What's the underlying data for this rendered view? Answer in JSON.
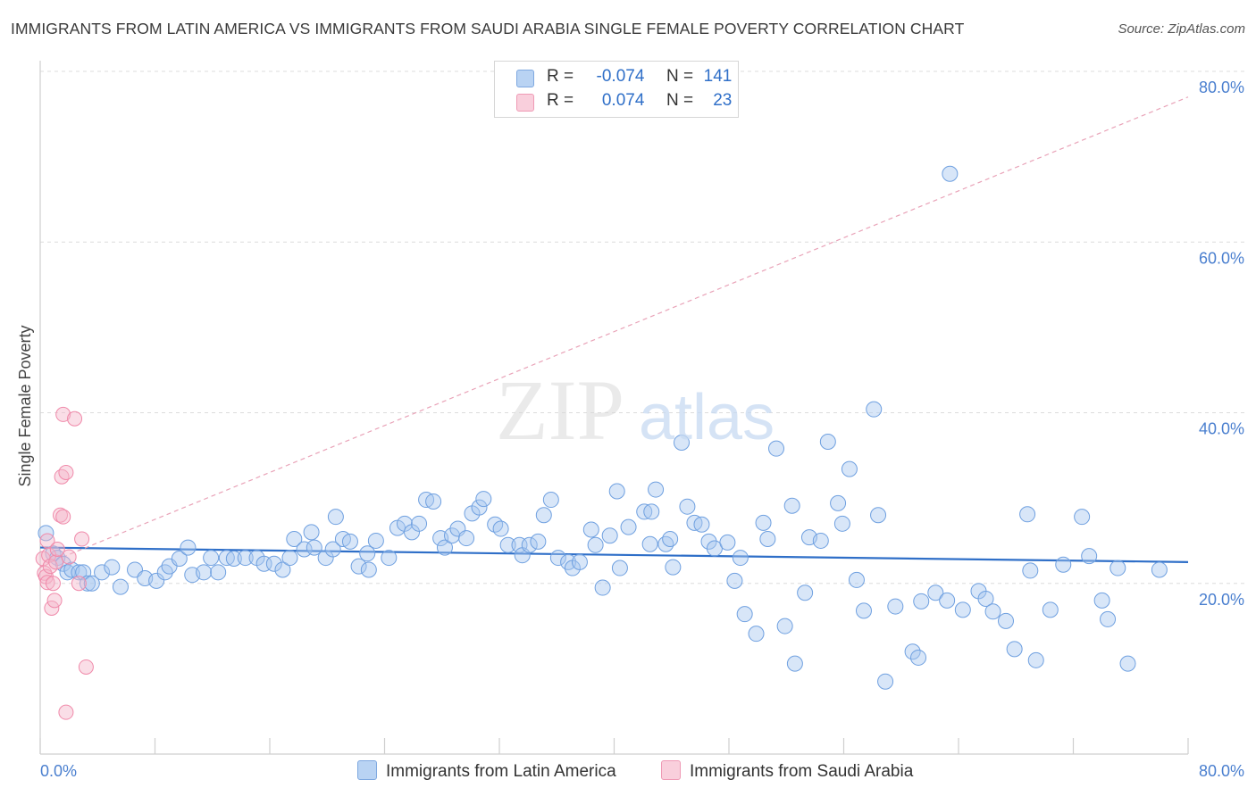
{
  "title": "IMMIGRANTS FROM LATIN AMERICA VS IMMIGRANTS FROM SAUDI ARABIA SINGLE FEMALE POVERTY CORRELATION CHART",
  "source": "Source: ZipAtlas.com",
  "watermark": "ZIPatlas",
  "legend": {
    "rows": [
      {
        "r_label": "R =",
        "r_value": "-0.074",
        "n_label": "N =",
        "n_value": "141",
        "color": "#a9c8f0"
      },
      {
        "r_label": "R =",
        "r_value": "0.074",
        "n_label": "N =",
        "n_value": "23",
        "color": "#f5b6c9"
      }
    ]
  },
  "bottom_legend": [
    {
      "label": "Immigrants from Latin America",
      "color": "#a9c8f0"
    },
    {
      "label": "Immigrants from Saudi Arabia",
      "color": "#f5b6c9"
    }
  ],
  "chart_data": {
    "type": "scatter",
    "title": "IMMIGRANTS FROM LATIN AMERICA VS IMMIGRANTS FROM SAUDI ARABIA SINGLE FEMALE POVERTY CORRELATION CHART",
    "xlabel": "",
    "ylabel": "Single Female Poverty",
    "xlim": [
      0,
      80
    ],
    "ylim": [
      0,
      80
    ],
    "x_tick_labels": [
      "0.0%",
      "80.0%"
    ],
    "y_tick_labels": [
      "20.0%",
      "40.0%",
      "60.0%",
      "80.0%"
    ],
    "y_ticks": [
      20,
      40,
      60,
      80
    ],
    "grid": true,
    "legend_position": "top-center",
    "series": [
      {
        "name": "Immigrants from Latin America",
        "color": "#6fa0e0",
        "r": -0.074,
        "n": 141,
        "trend": [
          [
            0,
            24.2
          ],
          [
            80,
            22.5
          ]
        ],
        "points": [
          [
            0.4,
            25.9
          ],
          [
            0.9,
            23.5
          ],
          [
            1.2,
            23.0
          ],
          [
            1.6,
            22.3
          ],
          [
            1.9,
            21.3
          ],
          [
            2.2,
            21.6
          ],
          [
            2.7,
            21.3
          ],
          [
            3.0,
            21.3
          ],
          [
            3.3,
            20.0
          ],
          [
            3.6,
            20.0
          ],
          [
            4.3,
            21.3
          ],
          [
            5.0,
            21.9
          ],
          [
            5.6,
            19.6
          ],
          [
            6.6,
            21.6
          ],
          [
            7.3,
            20.6
          ],
          [
            8.1,
            20.3
          ],
          [
            8.7,
            21.3
          ],
          [
            9.0,
            22.0
          ],
          [
            9.7,
            22.9
          ],
          [
            10.3,
            24.2
          ],
          [
            10.6,
            21.0
          ],
          [
            11.4,
            21.3
          ],
          [
            11.9,
            23.0
          ],
          [
            12.4,
            21.3
          ],
          [
            13.0,
            23.0
          ],
          [
            13.5,
            22.9
          ],
          [
            14.3,
            23.0
          ],
          [
            15.1,
            23.0
          ],
          [
            15.6,
            22.3
          ],
          [
            16.3,
            22.3
          ],
          [
            16.9,
            21.6
          ],
          [
            17.4,
            23.0
          ],
          [
            17.7,
            25.2
          ],
          [
            18.4,
            24.0
          ],
          [
            18.9,
            26.0
          ],
          [
            19.1,
            24.2
          ],
          [
            19.9,
            23.0
          ],
          [
            20.4,
            24.0
          ],
          [
            20.6,
            27.8
          ],
          [
            21.1,
            25.2
          ],
          [
            21.6,
            24.9
          ],
          [
            22.2,
            22.0
          ],
          [
            22.8,
            23.5
          ],
          [
            22.9,
            21.6
          ],
          [
            23.4,
            25.0
          ],
          [
            24.3,
            23.0
          ],
          [
            24.9,
            26.5
          ],
          [
            25.4,
            27.0
          ],
          [
            25.9,
            26.0
          ],
          [
            26.4,
            27.0
          ],
          [
            26.9,
            29.8
          ],
          [
            27.4,
            29.6
          ],
          [
            27.9,
            25.3
          ],
          [
            28.2,
            24.2
          ],
          [
            28.7,
            25.6
          ],
          [
            29.1,
            26.4
          ],
          [
            29.7,
            25.3
          ],
          [
            30.1,
            28.2
          ],
          [
            30.6,
            28.9
          ],
          [
            30.9,
            29.9
          ],
          [
            31.7,
            26.9
          ],
          [
            32.1,
            26.4
          ],
          [
            32.6,
            24.5
          ],
          [
            33.4,
            24.5
          ],
          [
            33.6,
            23.3
          ],
          [
            34.1,
            24.5
          ],
          [
            34.7,
            24.9
          ],
          [
            35.1,
            28.0
          ],
          [
            35.6,
            29.8
          ],
          [
            36.1,
            23.0
          ],
          [
            36.8,
            22.5
          ],
          [
            37.1,
            21.8
          ],
          [
            37.6,
            22.5
          ],
          [
            38.4,
            26.3
          ],
          [
            38.7,
            24.5
          ],
          [
            39.2,
            19.5
          ],
          [
            39.7,
            25.6
          ],
          [
            40.2,
            30.8
          ],
          [
            40.4,
            21.8
          ],
          [
            41.0,
            26.6
          ],
          [
            42.1,
            28.4
          ],
          [
            42.5,
            24.6
          ],
          [
            42.6,
            28.4
          ],
          [
            42.9,
            31.0
          ],
          [
            43.6,
            24.6
          ],
          [
            43.9,
            25.2
          ],
          [
            44.1,
            21.9
          ],
          [
            44.7,
            36.5
          ],
          [
            45.1,
            29.0
          ],
          [
            45.6,
            27.1
          ],
          [
            46.1,
            26.9
          ],
          [
            46.6,
            24.9
          ],
          [
            47.0,
            24.1
          ],
          [
            47.9,
            24.8
          ],
          [
            48.4,
            20.3
          ],
          [
            48.8,
            23.0
          ],
          [
            49.1,
            16.4
          ],
          [
            49.9,
            14.1
          ],
          [
            50.4,
            27.1
          ],
          [
            50.7,
            25.2
          ],
          [
            51.3,
            35.8
          ],
          [
            51.9,
            15.0
          ],
          [
            52.4,
            29.1
          ],
          [
            52.6,
            10.6
          ],
          [
            53.3,
            18.9
          ],
          [
            53.6,
            25.4
          ],
          [
            54.4,
            25.0
          ],
          [
            54.9,
            36.6
          ],
          [
            55.6,
            29.4
          ],
          [
            55.9,
            27.0
          ],
          [
            56.4,
            33.4
          ],
          [
            56.9,
            20.4
          ],
          [
            57.4,
            16.8
          ],
          [
            58.1,
            40.4
          ],
          [
            58.4,
            28.0
          ],
          [
            58.9,
            8.5
          ],
          [
            59.6,
            17.3
          ],
          [
            60.8,
            12.0
          ],
          [
            61.2,
            11.3
          ],
          [
            61.4,
            17.9
          ],
          [
            62.4,
            18.9
          ],
          [
            63.2,
            18.0
          ],
          [
            63.4,
            68.0
          ],
          [
            64.3,
            16.9
          ],
          [
            65.4,
            19.1
          ],
          [
            65.9,
            18.2
          ],
          [
            66.4,
            16.7
          ],
          [
            67.3,
            15.6
          ],
          [
            67.9,
            12.3
          ],
          [
            68.8,
            28.1
          ],
          [
            69.4,
            11.0
          ],
          [
            70.4,
            16.9
          ],
          [
            71.3,
            22.2
          ],
          [
            72.6,
            27.8
          ],
          [
            73.1,
            23.2
          ],
          [
            74.0,
            18.0
          ],
          [
            74.4,
            15.8
          ],
          [
            75.1,
            21.8
          ],
          [
            75.8,
            10.6
          ],
          [
            78.0,
            21.6
          ],
          [
            69.0,
            21.5
          ]
        ]
      },
      {
        "name": "Immigrants from Saudi Arabia",
        "color": "#f08aaa",
        "r": 0.074,
        "n": 23,
        "trend": [
          [
            0,
            22.0
          ],
          [
            80,
            77.0
          ]
        ],
        "points": [
          [
            0.2,
            22.9
          ],
          [
            0.3,
            21.2
          ],
          [
            0.4,
            20.8
          ],
          [
            0.5,
            25.0
          ],
          [
            0.5,
            20.1
          ],
          [
            0.6,
            23.3
          ],
          [
            0.7,
            22.0
          ],
          [
            0.8,
            17.1
          ],
          [
            0.9,
            20.0
          ],
          [
            1.0,
            18.0
          ],
          [
            1.1,
            22.5
          ],
          [
            1.2,
            24.0
          ],
          [
            1.4,
            28.0
          ],
          [
            1.5,
            32.5
          ],
          [
            1.6,
            27.8
          ],
          [
            1.6,
            39.8
          ],
          [
            1.8,
            33.0
          ],
          [
            1.8,
            4.9
          ],
          [
            2.0,
            23.1
          ],
          [
            2.4,
            39.3
          ],
          [
            2.7,
            20.0
          ],
          [
            2.9,
            25.2
          ],
          [
            3.2,
            10.2
          ]
        ]
      }
    ]
  }
}
